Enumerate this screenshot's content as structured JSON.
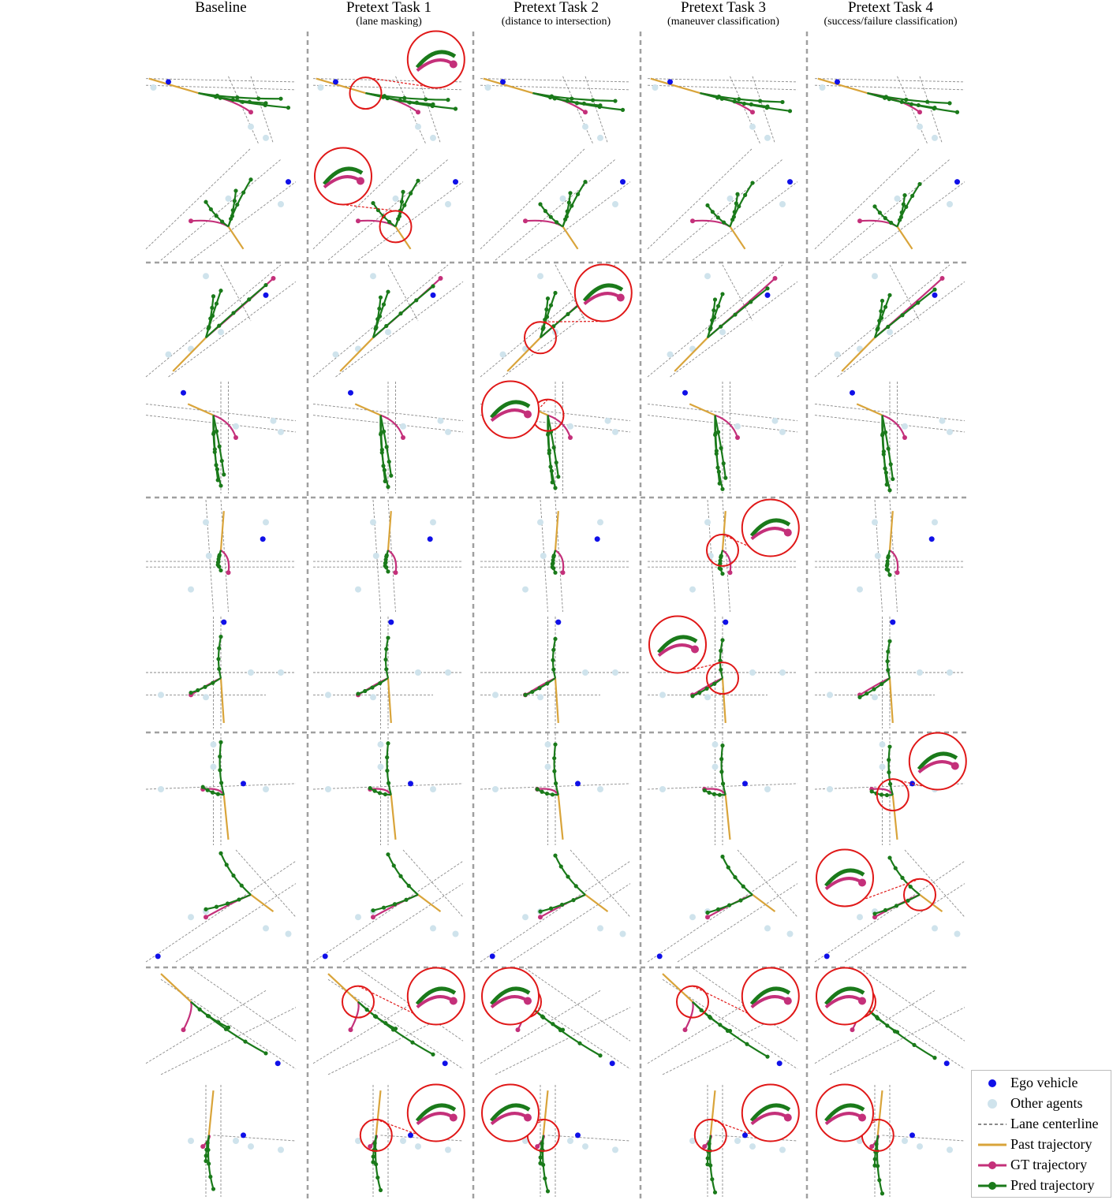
{
  "columns": [
    {
      "title": "Baseline",
      "subtitle": ""
    },
    {
      "title": "Pretext Task 1",
      "subtitle": "(lane masking)"
    },
    {
      "title": "Pretext Task 2",
      "subtitle": "(distance to intersection)"
    },
    {
      "title": "Pretext Task 3",
      "subtitle": "(maneuver classification)"
    },
    {
      "title": "Pretext Task 4",
      "subtitle": "(success/failure classification)"
    }
  ],
  "legend": [
    {
      "label": "Ego vehicle",
      "symbol": "ego"
    },
    {
      "label": "Other agents",
      "symbol": "agent"
    },
    {
      "label": "Lane centerline",
      "symbol": "lane"
    },
    {
      "label": "Past trajectory",
      "symbol": "past"
    },
    {
      "label": "GT trajectory",
      "symbol": "gt"
    },
    {
      "label": "Pred trajectory",
      "symbol": "pred"
    }
  ],
  "colors": {
    "ego": "#1010e8",
    "agent": "#cfe3ec",
    "lane": "#8a8a8a",
    "past": "#d9a43a",
    "gt": "#c4307a",
    "pred": "#1a7a1a",
    "zoom": "#e01818",
    "separator": "#a0a0a0"
  },
  "scene_count": 10,
  "zoom_marks": [
    {
      "scene": 0,
      "column": 1
    },
    {
      "scene": 1,
      "column": 1
    },
    {
      "scene": 2,
      "column": 2
    },
    {
      "scene": 3,
      "column": 2
    },
    {
      "scene": 4,
      "column": 3
    },
    {
      "scene": 5,
      "column": 3
    },
    {
      "scene": 6,
      "column": 4
    },
    {
      "scene": 7,
      "column": 4
    },
    {
      "scene": 8,
      "column": 1
    },
    {
      "scene": 8,
      "column": 2
    },
    {
      "scene": 8,
      "column": 3
    },
    {
      "scene": 8,
      "column": 4
    },
    {
      "scene": 9,
      "column": 1
    },
    {
      "scene": 9,
      "column": 2
    },
    {
      "scene": 9,
      "column": 3
    },
    {
      "scene": 9,
      "column": 4
    }
  ]
}
